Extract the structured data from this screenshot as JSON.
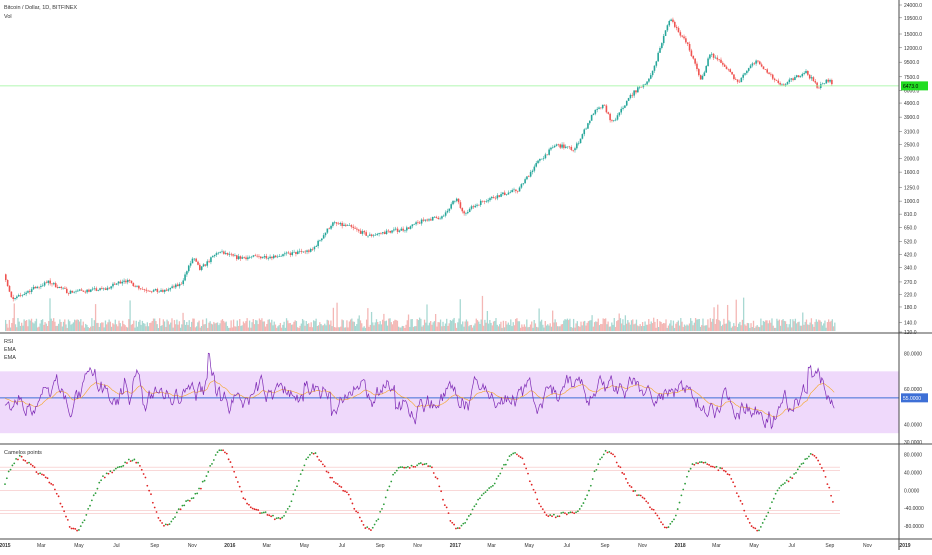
{
  "header": {
    "symbol_line": "Bitcoin / Dollar, 1D, BITFINEX",
    "volume_label": "Vol"
  },
  "colors": {
    "up": "#26a69a",
    "down": "#ef5350",
    "price_line": "#98f598",
    "price_badge": "#22dd22",
    "rsi_line": "#7e2bb5",
    "rsi_ema": "#f5a623",
    "rsi_band": "#efd9fb",
    "rsi_mid": "#3d6fd6",
    "rsi_badge": "#3d6fd6",
    "grid_pane_border": "#4a4a4a",
    "pt_up": "#2e9d3c",
    "pt_down": "#e02424",
    "pt_level": "#f3b1b1"
  },
  "chart_data": [
    {
      "type": "line",
      "pane": "price",
      "title": "Bitcoin / Dollar, 1D, BITFINEX",
      "scale": "log",
      "ylim": [
        120,
        24000
      ],
      "y_ticks": [
        "24000.0",
        "19500.0",
        "15000.0",
        "12000.0",
        "9500.0",
        "7500.0",
        "6000.0",
        "4900.0",
        "3900.0",
        "3100.0",
        "2500.0",
        "2000.0",
        "1600.0",
        "1250.0",
        "1000.0",
        "810.0",
        "650.0",
        "520.0",
        "420.0",
        "340.0",
        "270.0",
        "220.0",
        "180.0",
        "140.0",
        "120.0"
      ],
      "last_price": "6473.0",
      "series": [
        {
          "x": [
            "2015-01-01",
            "2015-01-14",
            "2015-02-15",
            "2015-03-15",
            "2015-04-15",
            "2015-05-15",
            "2015-06-15",
            "2015-07-15",
            "2015-08-15",
            "2015-09-15",
            "2015-10-15",
            "2015-11-04",
            "2015-11-15",
            "2015-12-15",
            "2016-01-15",
            "2016-02-15",
            "2016-03-15",
            "2016-04-15",
            "2016-05-15",
            "2016-06-17",
            "2016-07-15",
            "2016-08-15",
            "2016-09-15",
            "2016-10-15",
            "2016-11-15",
            "2016-12-15",
            "2017-01-04",
            "2017-01-15",
            "2017-02-15",
            "2017-03-15",
            "2017-04-15",
            "2017-05-15",
            "2017-06-15",
            "2017-07-15",
            "2017-08-15",
            "2017-09-01",
            "2017-09-15",
            "2017-10-15",
            "2017-11-15",
            "2017-12-17",
            "2018-01-15",
            "2018-02-06",
            "2018-02-20",
            "2018-03-15",
            "2018-04-06",
            "2018-05-05",
            "2018-06-15",
            "2018-07-25",
            "2018-08-15",
            "2018-09-01",
            "2018-09-08"
          ],
          "values": [
            315,
            200,
            240,
            270,
            230,
            235,
            240,
            280,
            240,
            230,
            260,
            400,
            330,
            440,
            400,
            405,
            410,
            430,
            450,
            700,
            660,
            570,
            610,
            640,
            740,
            780,
            1050,
            820,
            1000,
            1100,
            1200,
            1850,
            2500,
            2300,
            4200,
            4700,
            3500,
            5600,
            7300,
            19500,
            12500,
            7000,
            11000,
            9000,
            6800,
            9800,
            6400,
            8200,
            6300,
            7200,
            6473
          ]
        }
      ]
    },
    {
      "type": "bar",
      "pane": "volume",
      "series": [
        {
          "name": "Vol",
          "values": []
        }
      ]
    },
    {
      "type": "line",
      "pane": "rsi",
      "title": "",
      "ylim": [
        30,
        90
      ],
      "y_ticks": [
        "80.0000",
        "60.0000",
        "55.0000",
        "40.0000",
        "30.0000"
      ],
      "band": [
        35,
        70
      ],
      "mid": 55,
      "mid_badge": "55.0000",
      "series": [
        {
          "name": "RSI",
          "values": []
        },
        {
          "name": "EMA",
          "values": []
        },
        {
          "name": "EMA",
          "values": []
        }
      ]
    },
    {
      "type": "scatter",
      "pane": "osc",
      "title": "Camelos points",
      "ylim": [
        -105,
        95
      ],
      "y_ticks": [
        "80.0000",
        "40.0000",
        "0.0000",
        "-40.0000",
        "-80.0000"
      ],
      "levels": [
        40,
        0,
        -40
      ],
      "series": [
        {
          "name": "Camelos points",
          "values": []
        }
      ]
    }
  ],
  "x_axis": {
    "ticks": [
      {
        "label": "2015",
        "t": "2015-01-01",
        "bold": true
      },
      {
        "label": "Mar",
        "t": "2015-03-01"
      },
      {
        "label": "May",
        "t": "2015-05-01"
      },
      {
        "label": "Jul",
        "t": "2015-07-01"
      },
      {
        "label": "Sep",
        "t": "2015-09-01"
      },
      {
        "label": "Nov",
        "t": "2015-11-01"
      },
      {
        "label": "2016",
        "t": "2016-01-01",
        "bold": true
      },
      {
        "label": "Mar",
        "t": "2016-03-01"
      },
      {
        "label": "May",
        "t": "2016-05-01"
      },
      {
        "label": "Jul",
        "t": "2016-07-01"
      },
      {
        "label": "Sep",
        "t": "2016-09-01"
      },
      {
        "label": "Nov",
        "t": "2016-11-01"
      },
      {
        "label": "2017",
        "t": "2017-01-01",
        "bold": true
      },
      {
        "label": "Mar",
        "t": "2017-03-01"
      },
      {
        "label": "May",
        "t": "2017-05-01"
      },
      {
        "label": "Jul",
        "t": "2017-07-01"
      },
      {
        "label": "Sep",
        "t": "2017-09-01"
      },
      {
        "label": "Nov",
        "t": "2017-11-01"
      },
      {
        "label": "2018",
        "t": "2018-01-01",
        "bold": true
      },
      {
        "label": "Mar",
        "t": "2018-03-01"
      },
      {
        "label": "May",
        "t": "2018-05-01"
      },
      {
        "label": "Jul",
        "t": "2018-07-01"
      },
      {
        "label": "Sep",
        "t": "2018-09-01"
      },
      {
        "label": "Nov",
        "t": "2018-11-01"
      },
      {
        "label": "2019",
        "t": "2019-01-01",
        "bold": true
      }
    ]
  }
}
